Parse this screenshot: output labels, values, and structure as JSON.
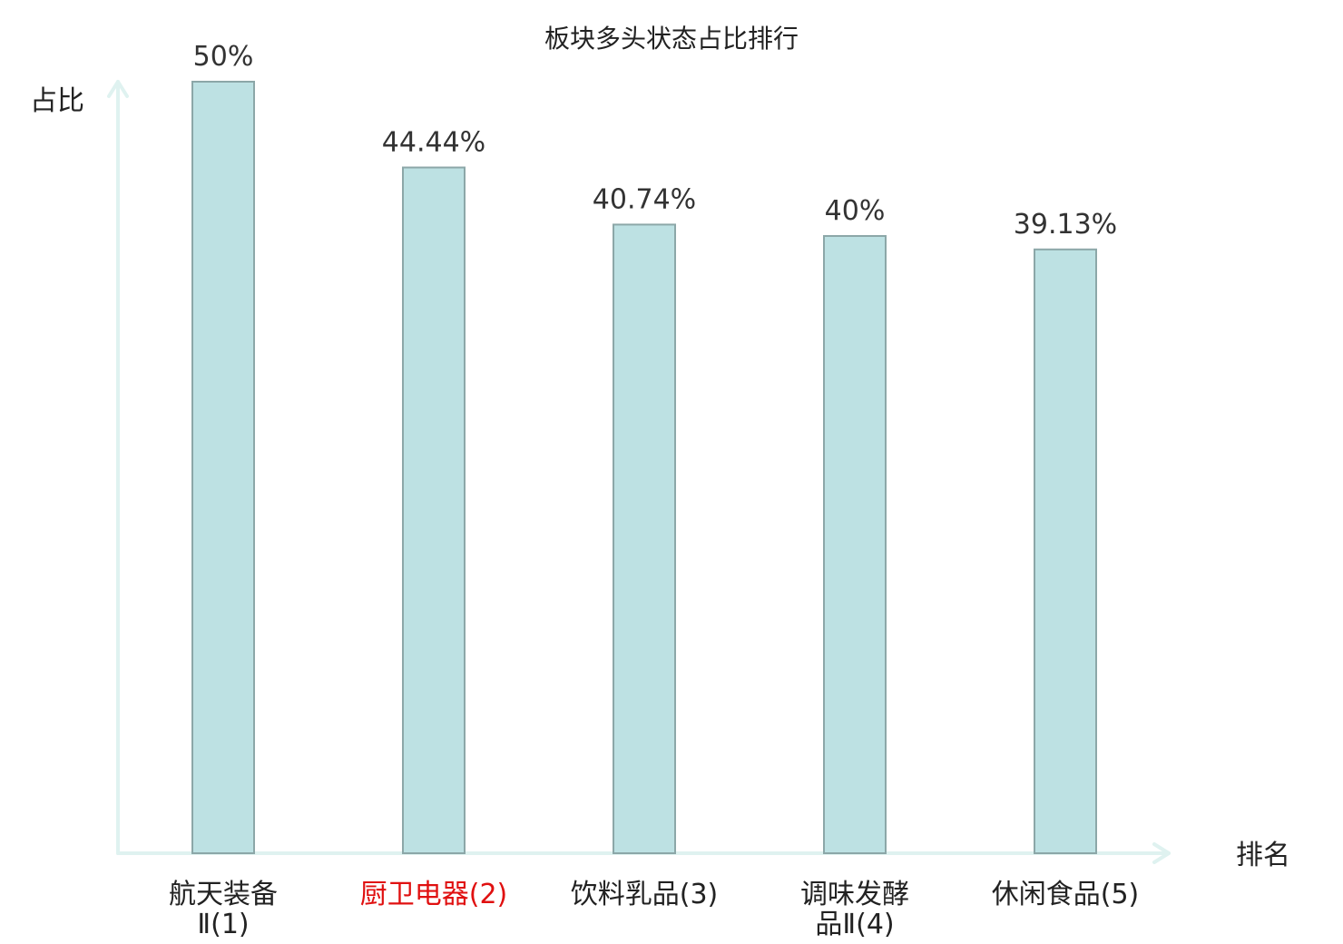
{
  "chart_data": {
    "type": "bar",
    "title": "板块多头状态占比排行",
    "xlabel": "排名",
    "ylabel": "占比",
    "ylim": [
      0,
      50
    ],
    "categories": [
      {
        "lines": [
          "航天装备",
          "Ⅱ(1)"
        ],
        "highlight": false
      },
      {
        "lines": [
          "厨卫电器(2)"
        ],
        "highlight": true
      },
      {
        "lines": [
          "饮料乳品(3)"
        ],
        "highlight": false
      },
      {
        "lines": [
          "调味发酵",
          "品Ⅱ(4)"
        ],
        "highlight": false
      },
      {
        "lines": [
          "休闲食品(5)"
        ],
        "highlight": false
      }
    ],
    "values": [
      50,
      44.44,
      40.74,
      40,
      39.13
    ],
    "value_labels": [
      "50%",
      "44.44%",
      "40.74%",
      "40%",
      "39.13%"
    ],
    "grid": false,
    "legend": "none"
  },
  "colors": {
    "bar_fill": "#bde1e3",
    "bar_stroke": "#8ca7a8",
    "axis": "#dff2f0",
    "text": "#222222",
    "highlight_text": "#e01010"
  }
}
